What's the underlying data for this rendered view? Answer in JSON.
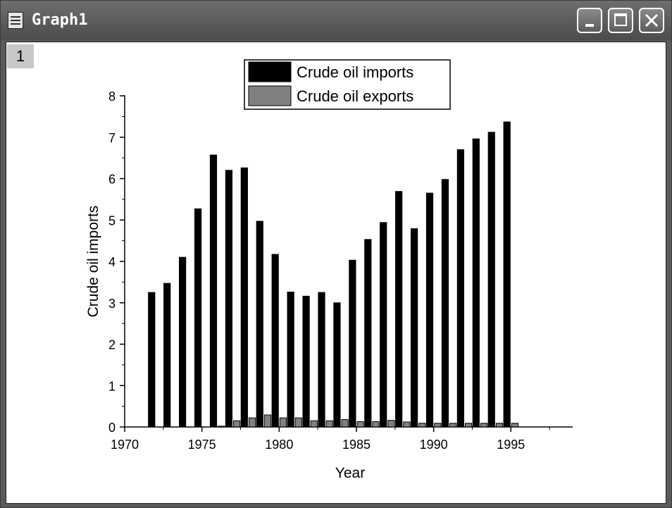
{
  "window": {
    "title": "Graph1",
    "layer_label": "1",
    "icons": {
      "app": "graph-window-icon",
      "minimize": "minimize-icon",
      "maximize": "maximize-icon",
      "close": "close-icon"
    }
  },
  "chart_data": {
    "type": "bar",
    "title": "",
    "xlabel": "Year",
    "ylabel": "Crude oil imports",
    "xlim": [
      1970,
      1999
    ],
    "ylim": [
      0,
      8
    ],
    "xticks": [
      "1970",
      "1975",
      "1980",
      "1985",
      "1990",
      "1995"
    ],
    "yticks": [
      "0",
      "1",
      "2",
      "3",
      "4",
      "5",
      "6",
      "7",
      "8"
    ],
    "legend_position": "top-center",
    "grid": false,
    "x": [
      1972,
      1973,
      1974,
      1975,
      1976,
      1977,
      1978,
      1979,
      1980,
      1981,
      1982,
      1983,
      1984,
      1985,
      1986,
      1987,
      1988,
      1989,
      1990,
      1991,
      1992,
      1993,
      1994,
      1995
    ],
    "series": [
      {
        "name": "Crude oil imports",
        "color": "#000000",
        "values": [
          3.25,
          3.47,
          4.1,
          5.27,
          6.57,
          6.2,
          6.26,
          4.97,
          4.17,
          3.26,
          3.16,
          3.25,
          3.0,
          4.03,
          4.53,
          4.94,
          5.69,
          4.79,
          5.65,
          5.98,
          6.7,
          6.96,
          7.12,
          7.37
        ]
      },
      {
        "name": "Crude oil exports",
        "color": "#808080",
        "values": [
          0.0,
          0.0,
          0.0,
          0.0,
          0.02,
          0.15,
          0.22,
          0.29,
          0.22,
          0.22,
          0.15,
          0.15,
          0.18,
          0.13,
          0.13,
          0.16,
          0.12,
          0.09,
          0.09,
          0.09,
          0.09,
          0.09,
          0.09,
          0.09
        ]
      }
    ]
  }
}
